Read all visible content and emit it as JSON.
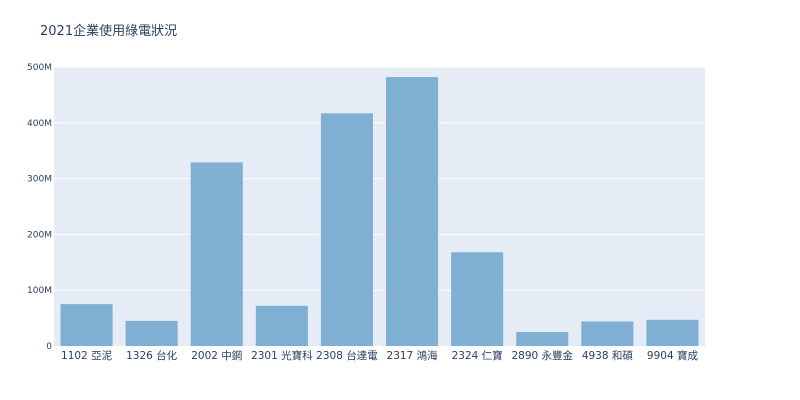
{
  "chart_data": {
    "type": "bar",
    "title": "2021企業使用綠電狀況",
    "xlabel": "",
    "ylabel": "",
    "categories": [
      "1102 亞泥",
      "1326 台化",
      "2002 中鋼",
      "2301 光寶科",
      "2308 台達電",
      "2317 鴻海",
      "2324 仁寶",
      "2890 永豐金",
      "4938 和碩",
      "9904 寶成"
    ],
    "values": [
      75000000,
      45000000,
      329000000,
      72000000,
      417000000,
      482000000,
      168000000,
      25000000,
      44000000,
      47000000
    ],
    "ylim": [
      0,
      500000000
    ],
    "yticks": [
      0,
      100000000,
      200000000,
      300000000,
      400000000,
      500000000
    ],
    "ytick_labels": [
      "0",
      "100M",
      "200M",
      "300M",
      "400M",
      "500M"
    ],
    "grid": true,
    "colors": {
      "bar": "#7fafd2",
      "plot_bg": "#e5ecf6",
      "grid": "#ffffff",
      "text": "#2a3f5f"
    }
  }
}
